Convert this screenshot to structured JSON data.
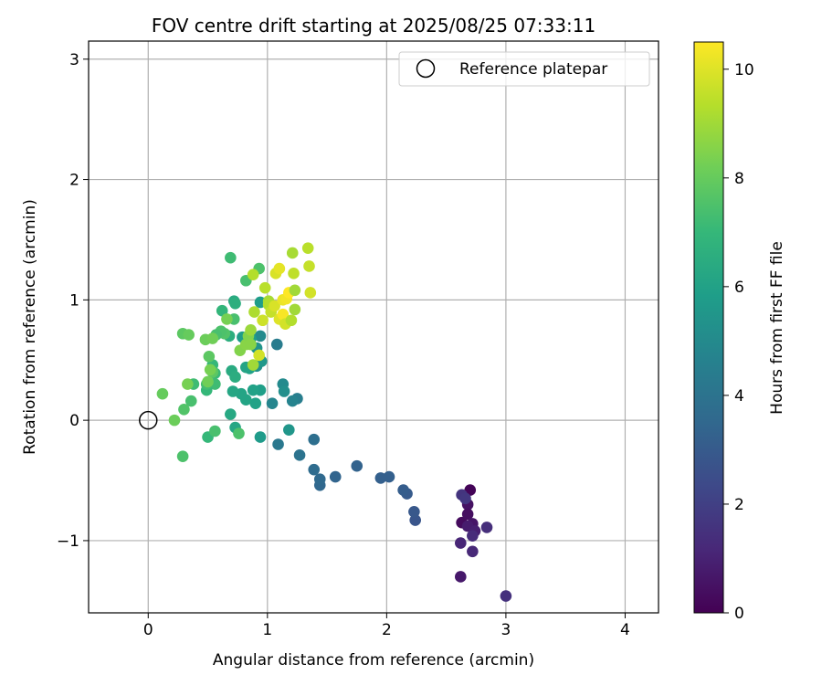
{
  "chart_data": {
    "type": "scatter",
    "title": "FOV centre drift starting at 2025/08/25 07:33:11",
    "xlabel": "Angular distance from reference (arcmin)",
    "ylabel": "Rotation from reference (arcmin)",
    "xlim": [
      -0.5,
      4.28
    ],
    "ylim": [
      -1.6,
      3.15
    ],
    "xticks": [
      0,
      1,
      2,
      3,
      4
    ],
    "yticks": [
      -1,
      0,
      1,
      2,
      3
    ],
    "grid": true,
    "legend": {
      "position": "top-right",
      "entries": [
        "Reference platepar"
      ]
    },
    "reference": {
      "x": 0,
      "y": 0,
      "label": "Reference platepar"
    },
    "colorbar": {
      "label": "Hours from first FF file",
      "min": 0,
      "max": 10.5,
      "ticks": [
        0,
        2,
        4,
        6,
        8,
        10
      ],
      "colormap": "viridis",
      "stops": [
        "#440154",
        "#482878",
        "#3e4989",
        "#31688e",
        "#26828e",
        "#1f9e89",
        "#35b779",
        "#6ece58",
        "#b5de2b",
        "#fde725"
      ]
    },
    "points": [
      [
        2.7,
        -0.58,
        0.1
      ],
      [
        2.63,
        -0.85,
        0.3
      ],
      [
        2.68,
        -0.7,
        0.5
      ],
      [
        2.68,
        -0.78,
        0.4
      ],
      [
        2.72,
        -0.86,
        0.6
      ],
      [
        2.62,
        -1.3,
        0.7
      ],
      [
        2.68,
        -0.88,
        0.8
      ],
      [
        2.74,
        -0.92,
        0.9
      ],
      [
        2.62,
        -1.02,
        1.1
      ],
      [
        2.72,
        -1.09,
        1.2
      ],
      [
        2.72,
        -0.96,
        1.3
      ],
      [
        2.84,
        -0.89,
        1.4
      ],
      [
        3.0,
        -1.46,
        1.5
      ],
      [
        2.63,
        -0.62,
        1.6
      ],
      [
        2.66,
        -0.65,
        1.7
      ],
      [
        2.24,
        -0.83,
        2.8
      ],
      [
        2.23,
        -0.76,
        2.9
      ],
      [
        2.17,
        -0.61,
        3.0
      ],
      [
        2.14,
        -0.58,
        3.1
      ],
      [
        2.02,
        -0.47,
        3.2
      ],
      [
        1.95,
        -0.48,
        3.2
      ],
      [
        1.75,
        -0.38,
        3.3
      ],
      [
        1.57,
        -0.47,
        3.4
      ],
      [
        1.44,
        -0.54,
        3.5
      ],
      [
        1.44,
        -0.49,
        3.6
      ],
      [
        1.39,
        -0.41,
        3.7
      ],
      [
        1.39,
        -0.16,
        3.8
      ],
      [
        1.27,
        -0.29,
        4.0
      ],
      [
        1.09,
        -0.2,
        4.2
      ],
      [
        1.25,
        0.18,
        4.5
      ],
      [
        1.21,
        0.16,
        4.7
      ],
      [
        1.08,
        0.63,
        4.4
      ],
      [
        1.04,
        0.14,
        4.8
      ],
      [
        1.13,
        0.3,
        5.0
      ],
      [
        1.14,
        0.24,
        5.2
      ],
      [
        1.18,
        -0.08,
        5.5
      ],
      [
        0.94,
        -0.14,
        5.7
      ],
      [
        0.94,
        0.25,
        5.9
      ],
      [
        0.9,
        0.14,
        6.0
      ],
      [
        0.88,
        0.25,
        6.0
      ],
      [
        0.82,
        0.17,
        6.1
      ],
      [
        0.78,
        0.22,
        6.1
      ],
      [
        0.71,
        0.24,
        6.2
      ],
      [
        0.73,
        -0.06,
        6.2
      ],
      [
        0.69,
        0.05,
        6.3
      ],
      [
        0.91,
        0.45,
        5.3
      ],
      [
        0.95,
        0.49,
        5.6
      ],
      [
        0.91,
        0.6,
        5.4
      ],
      [
        0.94,
        0.7,
        5.0
      ],
      [
        0.85,
        0.43,
        6.0
      ],
      [
        0.82,
        0.44,
        6.1
      ],
      [
        0.79,
        0.69,
        5.8
      ],
      [
        0.86,
        0.68,
        5.8
      ],
      [
        0.94,
        0.98,
        5.8
      ],
      [
        0.72,
        0.99,
        6.4
      ],
      [
        0.73,
        0.97,
        6.6
      ],
      [
        0.7,
        0.41,
        6.4
      ],
      [
        0.73,
        0.36,
        6.5
      ],
      [
        0.68,
        0.7,
        6.6
      ],
      [
        0.62,
        0.91,
        6.9
      ],
      [
        0.69,
        1.35,
        7.2
      ],
      [
        0.82,
        1.16,
        7.4
      ],
      [
        0.93,
        1.26,
        7.5
      ],
      [
        0.72,
        0.84,
        7.4
      ],
      [
        0.64,
        0.72,
        7.6
      ],
      [
        0.61,
        0.74,
        7.5
      ],
      [
        0.57,
        0.71,
        7.4
      ],
      [
        0.54,
        0.46,
        7.0
      ],
      [
        0.56,
        0.39,
        7.1
      ],
      [
        0.56,
        0.3,
        7.2
      ],
      [
        0.49,
        0.25,
        7.0
      ],
      [
        0.49,
        0.3,
        7.3
      ],
      [
        0.51,
        0.53,
        7.8
      ],
      [
        0.54,
        0.4,
        7.8
      ],
      [
        0.38,
        0.3,
        7.2
      ],
      [
        0.36,
        0.16,
        7.4
      ],
      [
        0.3,
        0.09,
        7.6
      ],
      [
        0.5,
        -0.14,
        7.0
      ],
      [
        0.56,
        -0.09,
        7.4
      ],
      [
        0.76,
        -0.11,
        7.5
      ],
      [
        0.29,
        -0.3,
        7.5
      ],
      [
        0.12,
        0.22,
        8.0
      ],
      [
        0.22,
        0.0,
        8.1
      ],
      [
        0.29,
        0.72,
        7.8
      ],
      [
        0.34,
        0.71,
        8.0
      ],
      [
        0.33,
        0.3,
        8.3
      ],
      [
        0.48,
        0.67,
        8.1
      ],
      [
        0.5,
        0.32,
        8.2
      ],
      [
        0.52,
        0.42,
        8.3
      ],
      [
        0.54,
        0.68,
        8.2
      ],
      [
        0.66,
        0.84,
        8.3
      ],
      [
        0.77,
        0.58,
        8.5
      ],
      [
        0.82,
        0.63,
        8.6
      ],
      [
        0.84,
        0.7,
        8.5
      ],
      [
        0.86,
        0.63,
        8.6
      ],
      [
        0.86,
        0.75,
        8.9
      ],
      [
        0.88,
        0.46,
        9.0
      ],
      [
        0.88,
        1.21,
        9.3
      ],
      [
        0.89,
        0.9,
        9.2
      ],
      [
        0.93,
        0.54,
        9.8
      ],
      [
        0.96,
        0.83,
        9.7
      ],
      [
        0.98,
        1.1,
        9.4
      ],
      [
        1.01,
        0.99,
        9.1
      ],
      [
        1.01,
        0.96,
        9.3
      ],
      [
        1.03,
        0.9,
        9.6
      ],
      [
        1.06,
        0.95,
        9.9
      ],
      [
        1.07,
        1.22,
        9.9
      ],
      [
        1.1,
        1.26,
        10.1
      ],
      [
        1.1,
        0.84,
        10.0
      ],
      [
        1.13,
        1.0,
        10.2
      ],
      [
        1.13,
        0.88,
        10.4
      ],
      [
        1.15,
        0.8,
        9.8
      ],
      [
        1.16,
        1.01,
        10.3
      ],
      [
        1.18,
        1.06,
        10.5
      ],
      [
        1.2,
        0.83,
        9.3
      ],
      [
        1.21,
        1.39,
        9.1
      ],
      [
        1.22,
        1.22,
        9.5
      ],
      [
        1.23,
        0.92,
        9.0
      ],
      [
        1.23,
        1.08,
        9.0
      ],
      [
        1.34,
        1.43,
        9.4
      ],
      [
        1.35,
        1.28,
        9.6
      ],
      [
        1.36,
        1.06,
        9.8
      ]
    ]
  }
}
